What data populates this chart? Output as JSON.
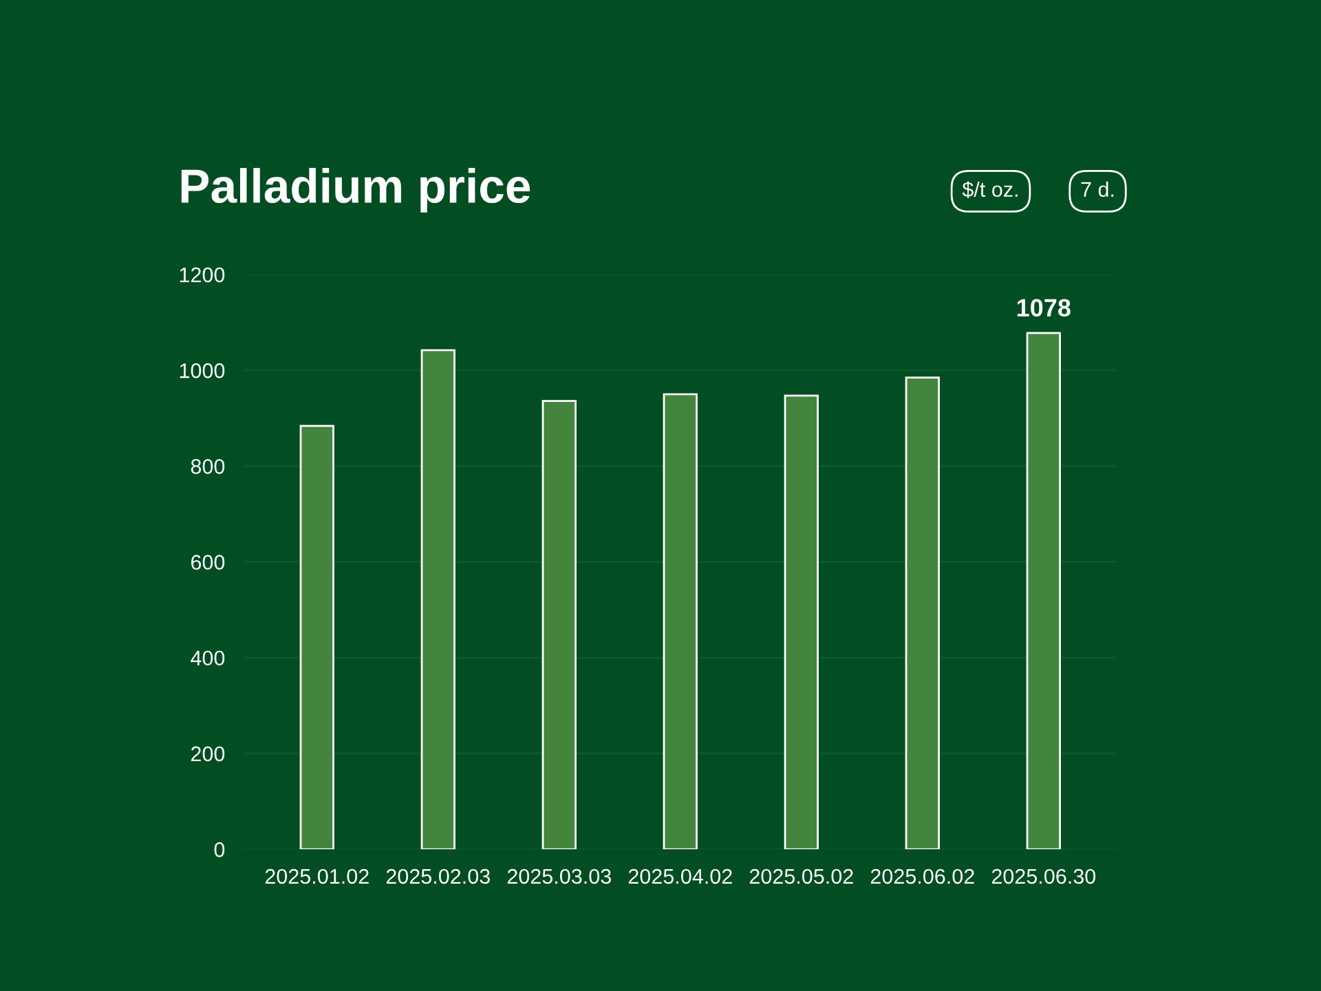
{
  "chart_data": {
    "type": "bar",
    "title": "Palladium price",
    "annotations": [
      "$/t oz.",
      "7 d."
    ],
    "categories": [
      "2025.01.02",
      "2025.02.03",
      "2025.03.03",
      "2025.04.02",
      "2025.05.02",
      "2025.06.02",
      "2025.06.30"
    ],
    "values": [
      884,
      1042,
      936,
      950,
      947,
      985,
      1078
    ],
    "value_labels": [
      null,
      null,
      null,
      null,
      null,
      null,
      "1078"
    ],
    "color": "#43853d",
    "ylim": [
      0,
      1200
    ],
    "yticks": [
      0,
      200,
      400,
      600,
      800,
      1000,
      1200
    ],
    "grid": "y"
  }
}
